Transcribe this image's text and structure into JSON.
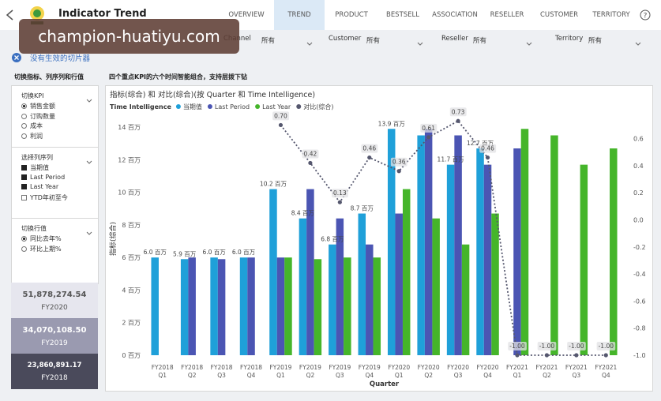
{
  "header": {
    "title": "Indicator Trend",
    "tabs": [
      "OVERVIEW",
      "TREND",
      "PRODUCT",
      "BESTSELL",
      "ASSOCIATION",
      "RESELLER",
      "CUSTOMER",
      "TERRITORY"
    ],
    "active_tab": 1
  },
  "watermark": "champion-huatiyu.com",
  "filters": [
    {
      "label": "Channel",
      "value": "所有"
    },
    {
      "label": "Customer",
      "value": "所有"
    },
    {
      "label": "Reseller",
      "value": "所有"
    },
    {
      "label": "Territory",
      "value": "所有"
    }
  ],
  "slicer_note": "没有生效的切片器",
  "left_panel": {
    "heading": "切换指标、列序列和行值",
    "sections": [
      {
        "title": "切换KPI",
        "kind": "radio",
        "options": [
          {
            "label": "销售金额",
            "selected": true
          },
          {
            "label": "订购数量",
            "selected": false
          },
          {
            "label": "成本",
            "selected": false
          },
          {
            "label": "利润",
            "selected": false
          }
        ]
      },
      {
        "title": "选择列序列",
        "kind": "checkbox",
        "options": [
          {
            "label": "当期值",
            "selected": true
          },
          {
            "label": "Last Period",
            "selected": true
          },
          {
            "label": "Last Year",
            "selected": true
          },
          {
            "label": "YTD年初至今",
            "selected": false
          }
        ]
      },
      {
        "title": "切换行值",
        "kind": "radio",
        "options": [
          {
            "label": "同比去年%",
            "selected": true
          },
          {
            "label": "环比上期%",
            "selected": false
          }
        ]
      }
    ],
    "cards": [
      {
        "value": "51,878,274.54",
        "label": "FY2020"
      },
      {
        "value": "34,070,108.50",
        "label": "FY2019"
      },
      {
        "value": "23,860,891.17",
        "label": "FY2018"
      }
    ]
  },
  "chart_heading": "四个重点KPI的六个时间智能组合，支持层拨下钻",
  "chart_data": {
    "type": "bar",
    "title": "指标(综合) 和 对比(综合)(按 Quarter 和 Time Intelligence)",
    "legend": {
      "title": "Time Intelligence",
      "position": "top-left"
    },
    "x_label": "Quarter",
    "y_label": "指标(综合)",
    "categories": [
      [
        "FY2018",
        "Q1"
      ],
      [
        "FY2018",
        "Q2"
      ],
      [
        "FY2018",
        "Q3"
      ],
      [
        "FY2018",
        "Q4"
      ],
      [
        "FY2019",
        "Q1"
      ],
      [
        "FY2019",
        "Q2"
      ],
      [
        "FY2019",
        "Q3"
      ],
      [
        "FY2019",
        "Q4"
      ],
      [
        "FY2020",
        "Q1"
      ],
      [
        "FY2020",
        "Q2"
      ],
      [
        "FY2020",
        "Q3"
      ],
      [
        "FY2020",
        "Q4"
      ],
      [
        "FY2021",
        "Q1"
      ],
      [
        "FY2021",
        "Q2"
      ],
      [
        "FY2021",
        "Q3"
      ],
      [
        "FY2021",
        "Q4"
      ]
    ],
    "series": [
      {
        "name": "当期值",
        "type": "bar",
        "color": "#1fa0d9",
        "values": [
          6.0,
          5.9,
          6.0,
          6.0,
          10.2,
          8.4,
          6.8,
          8.7,
          13.9,
          13.5,
          11.7,
          12.7,
          null,
          null,
          null,
          null
        ],
        "value_labels": [
          "6.0 百万",
          "5.9 百万",
          "6.0 百万",
          "6.0 百万",
          "10.2 百万",
          "8.4 百万",
          "6.8 百万",
          "8.7 百万",
          "13.9 百万",
          null,
          "11.7 百万",
          "12.7 百万",
          null,
          null,
          null,
          null
        ]
      },
      {
        "name": "Last Period",
        "type": "bar",
        "color": "#4b55b3",
        "values": [
          null,
          6.0,
          5.9,
          6.0,
          6.0,
          10.2,
          8.4,
          6.8,
          8.7,
          13.9,
          13.5,
          11.7,
          12.7,
          null,
          null,
          null
        ]
      },
      {
        "name": "Last Year",
        "type": "bar",
        "color": "#45b52a",
        "values": [
          null,
          null,
          null,
          null,
          6.0,
          5.9,
          6.0,
          6.0,
          10.2,
          8.4,
          6.8,
          8.7,
          13.9,
          13.5,
          11.7,
          12.7
        ]
      },
      {
        "name": "对比(综合)",
        "type": "line",
        "axis": "y2",
        "color": "#55576e",
        "values": [
          null,
          null,
          null,
          null,
          0.7,
          0.42,
          0.13,
          0.46,
          0.36,
          0.61,
          0.73,
          0.46,
          -1.0,
          -1.0,
          -1.0,
          -1.0
        ],
        "value_labels": [
          null,
          null,
          null,
          null,
          "0.70",
          "0.42",
          "0.13",
          "0.46",
          "0.36",
          "0.61",
          "0.73",
          "0.46",
          "-1.00",
          "-1.00",
          "-1.00",
          "-1.00"
        ]
      }
    ],
    "ylim": [
      0,
      14.3
    ],
    "yticks": [
      {
        "value": 0,
        "label": "0 百万"
      },
      {
        "value": 2,
        "label": "2 百万"
      },
      {
        "value": 4,
        "label": "4 百万"
      },
      {
        "value": 6,
        "label": "6 百万"
      },
      {
        "value": 8,
        "label": "8 百万"
      },
      {
        "value": 10,
        "label": "10 百万"
      },
      {
        "value": 12,
        "label": "12 百万"
      },
      {
        "value": 14,
        "label": "14 百万"
      }
    ],
    "y2lim": [
      -1.0,
      0.72
    ],
    "y2ticks": [
      0.6,
      0.4,
      0.2,
      {
        "value": 0,
        "label": "0.0"
      },
      -0.2,
      -0.4,
      -0.6,
      -0.8,
      {
        "value": -1,
        "label": "-1.0"
      }
    ],
    "grid": false
  }
}
